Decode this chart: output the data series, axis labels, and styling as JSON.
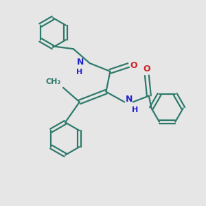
{
  "background_color": "#e6e6e6",
  "bond_color": "#2d7a6b",
  "N_color": "#2222cc",
  "O_color": "#cc2222",
  "line_width": 1.6,
  "font_size": 8.5,
  "figsize": [
    3.0,
    3.0
  ],
  "dpi": 100,
  "xlim": [
    0,
    10
  ],
  "ylim": [
    0,
    10
  ]
}
